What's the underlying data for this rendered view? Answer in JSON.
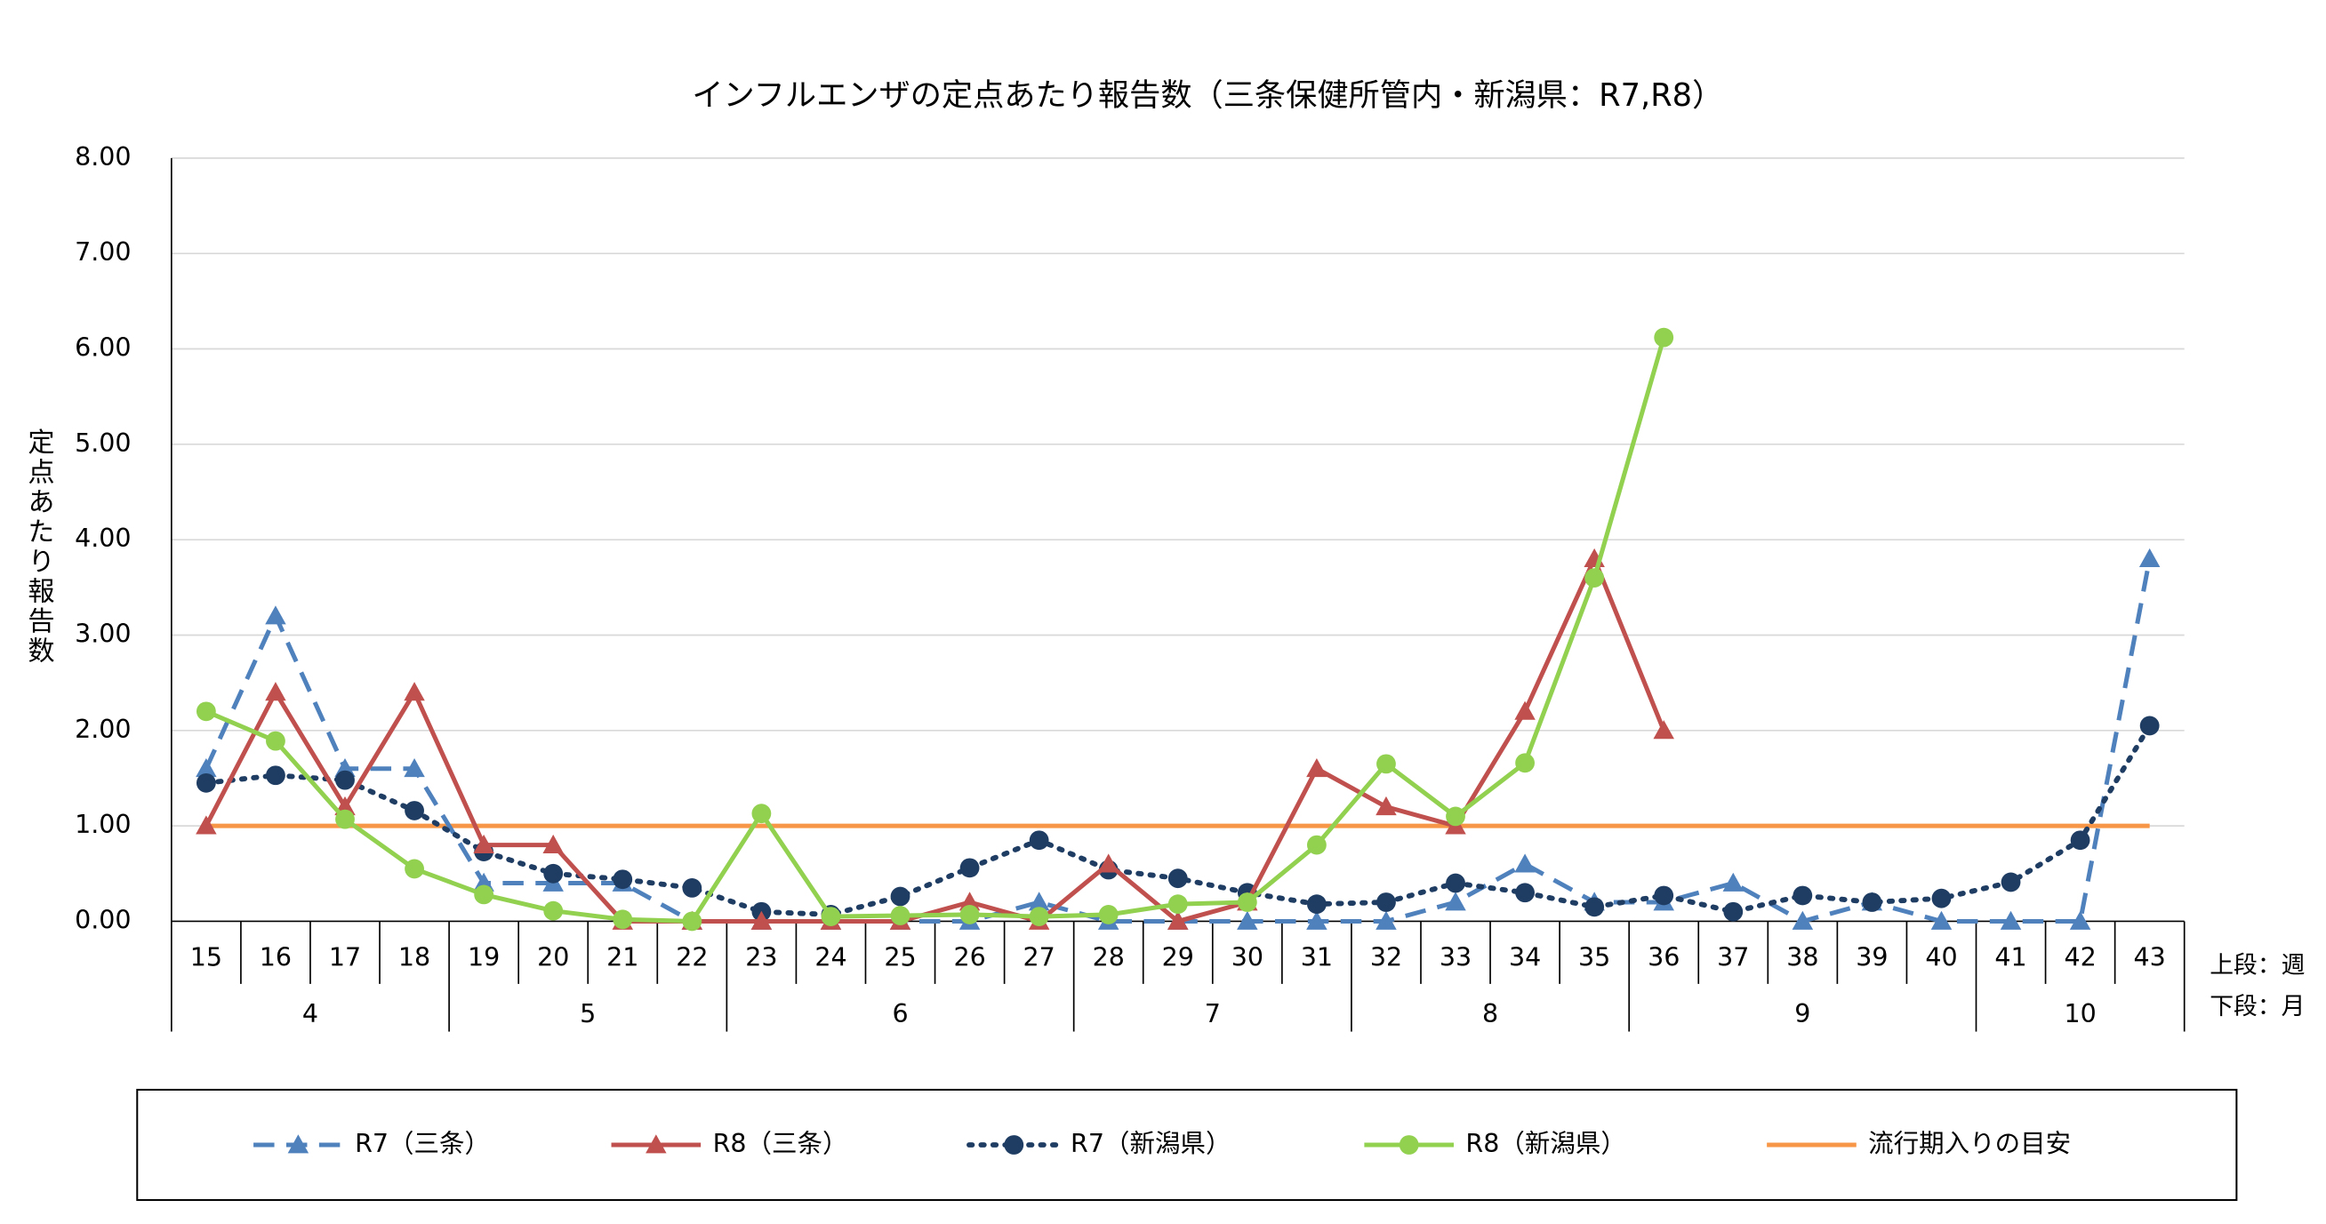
{
  "chart_data": {
    "type": "line",
    "title": "インフルエンザの定点あたり報告数（三条保健所管内・新潟県：R7,R8）",
    "y_axis_label": "定点あたり報告数",
    "x_axis_note_top": "上段：週",
    "x_axis_note_bottom": "下段：月",
    "categories": [
      "15",
      "16",
      "17",
      "18",
      "19",
      "20",
      "21",
      "22",
      "23",
      "24",
      "25",
      "26",
      "27",
      "28",
      "29",
      "30",
      "31",
      "32",
      "33",
      "34",
      "35",
      "36",
      "37",
      "38",
      "39",
      "40",
      "41",
      "42",
      "43"
    ],
    "months": [
      "4",
      "4",
      "4",
      "4",
      "5",
      "5",
      "5",
      "5",
      "6",
      "6",
      "6",
      "6",
      "6",
      "7",
      "7",
      "7",
      "7",
      "8",
      "8",
      "8",
      "8",
      "9",
      "9",
      "9",
      "9",
      "9",
      "10",
      "10",
      "10"
    ],
    "ylim": [
      0,
      8
    ],
    "yticks": [
      {
        "value": 0,
        "label": "0.00"
      },
      {
        "value": 1,
        "label": "1.00"
      },
      {
        "value": 2,
        "label": "2.00"
      },
      {
        "value": 3,
        "label": "3.00"
      },
      {
        "value": 4,
        "label": "4.00"
      },
      {
        "value": 5,
        "label": "5.00"
      },
      {
        "value": 6,
        "label": "6.00"
      },
      {
        "value": 7,
        "label": "7.00"
      },
      {
        "value": 8,
        "label": "8.00"
      }
    ],
    "grid": true,
    "series": [
      {
        "name": "R7（三条）",
        "color": "#4f81bd",
        "dash": "dashed",
        "marker": "triangle",
        "values": [
          1.6,
          3.2,
          1.6,
          1.6,
          0.4,
          0.4,
          0.4,
          0,
          0,
          0,
          0,
          0,
          0.2,
          0,
          0,
          0,
          0,
          0,
          0.2,
          0.6,
          0.2,
          0.2,
          0.4,
          0,
          0.2,
          0,
          0,
          0,
          3.8
        ]
      },
      {
        "name": "R8（三条）",
        "color": "#c0504d",
        "dash": "solid",
        "marker": "triangle",
        "values": [
          1.0,
          2.4,
          1.2,
          2.4,
          0.8,
          0.8,
          0,
          0,
          0,
          0,
          0,
          0.2,
          0,
          0.6,
          0,
          0.2,
          1.6,
          1.2,
          1.0,
          2.2,
          3.8,
          2.0,
          null,
          null,
          null,
          null,
          null,
          null,
          null
        ]
      },
      {
        "name": "R7（新潟県）",
        "color": "#1f3d63",
        "dash": "dotted",
        "marker": "circle",
        "values": [
          1.45,
          1.53,
          1.48,
          1.16,
          0.73,
          0.5,
          0.44,
          0.35,
          0.1,
          0.07,
          0.26,
          0.56,
          0.85,
          0.54,
          0.45,
          0.3,
          0.18,
          0.2,
          0.4,
          0.3,
          0.15,
          0.27,
          0.1,
          0.27,
          0.2,
          0.24,
          0.41,
          0.85,
          2.05
        ]
      },
      {
        "name": "R8（新潟県）",
        "color": "#92d050",
        "dash": "solid",
        "marker": "circle",
        "values": [
          2.2,
          1.89,
          1.07,
          0.55,
          0.28,
          0.11,
          0.02,
          0,
          1.13,
          0.05,
          0.06,
          0.07,
          0.05,
          0.07,
          0.18,
          0.2,
          0.8,
          1.65,
          1.1,
          1.66,
          3.6,
          6.12,
          null,
          null,
          null,
          null,
          null,
          null,
          null
        ]
      },
      {
        "name": "流行期入りの目安",
        "color": "#f79646",
        "dash": "solid",
        "marker": "none",
        "values": [
          1,
          1,
          1,
          1,
          1,
          1,
          1,
          1,
          1,
          1,
          1,
          1,
          1,
          1,
          1,
          1,
          1,
          1,
          1,
          1,
          1,
          1,
          1,
          1,
          1,
          1,
          1,
          1,
          1
        ]
      }
    ]
  }
}
